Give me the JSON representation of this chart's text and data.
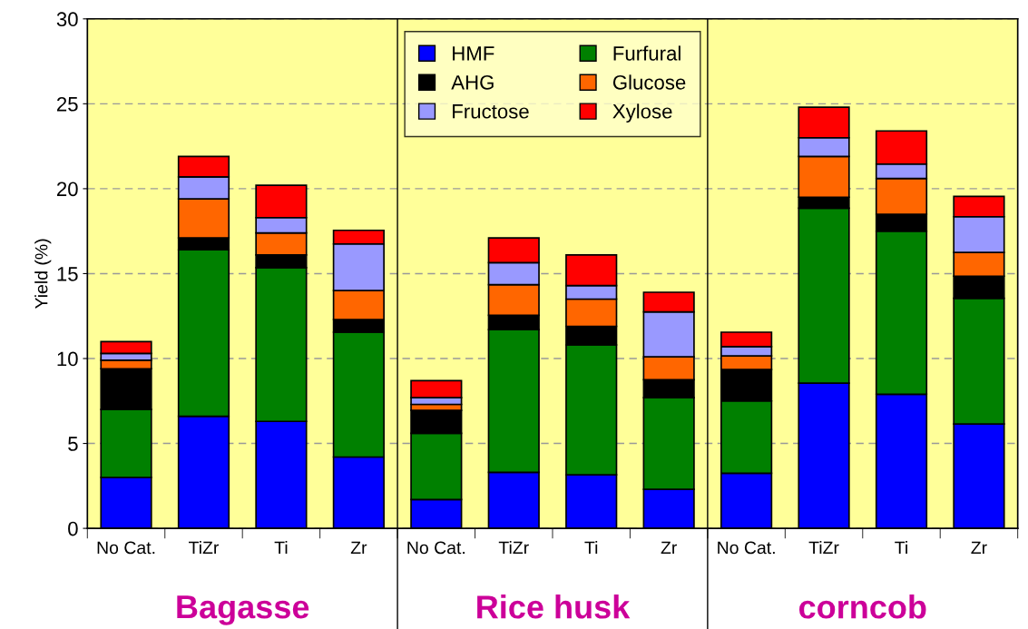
{
  "chart_data": {
    "type": "bar",
    "stacked": true,
    "ylabel": "Yield (%)",
    "categories": [
      "No Cat.",
      "TiZr",
      "Ti",
      "Zr",
      "No Cat.",
      "TiZr",
      "Ti",
      "Zr",
      "No Cat.",
      "TiZr",
      "Ti",
      "Zr"
    ],
    "series": [
      {
        "name": "HMF",
        "color": "#0000ff",
        "values": [
          3.0,
          6.6,
          6.3,
          4.2,
          1.7,
          3.3,
          3.15,
          2.3,
          3.25,
          8.55,
          7.9,
          6.15
        ]
      },
      {
        "name": "Furfural",
        "color": "#008000",
        "values": [
          4.0,
          9.8,
          9.05,
          7.35,
          3.9,
          8.4,
          7.65,
          5.4,
          4.25,
          10.3,
          9.6,
          7.4
        ]
      },
      {
        "name": "AHG",
        "color": "#000000",
        "values": [
          2.4,
          0.7,
          0.75,
          0.75,
          1.35,
          0.85,
          1.1,
          1.05,
          1.85,
          0.65,
          1.0,
          1.3
        ]
      },
      {
        "name": "Glucose",
        "color": "#ff6600",
        "values": [
          0.5,
          2.3,
          1.3,
          1.7,
          0.35,
          1.8,
          1.6,
          1.35,
          0.8,
          2.4,
          2.1,
          1.4
        ]
      },
      {
        "name": "Fructose",
        "color": "#9999ff",
        "values": [
          0.4,
          1.3,
          0.9,
          2.75,
          0.4,
          1.3,
          0.8,
          2.65,
          0.55,
          1.1,
          0.85,
          2.1
        ]
      },
      {
        "name": "Xylose",
        "color": "#ff0000",
        "values": [
          0.7,
          1.2,
          1.9,
          0.8,
          1.0,
          1.45,
          1.8,
          1.15,
          0.85,
          1.8,
          1.95,
          1.2
        ]
      }
    ],
    "annotations": [
      "Bagasse",
      "Rice husk",
      "corncob"
    ],
    "ylim": [
      0,
      30
    ],
    "yticks": [
      0,
      5,
      10,
      15,
      20,
      25,
      30
    ],
    "grid": "y",
    "legend": "top"
  }
}
